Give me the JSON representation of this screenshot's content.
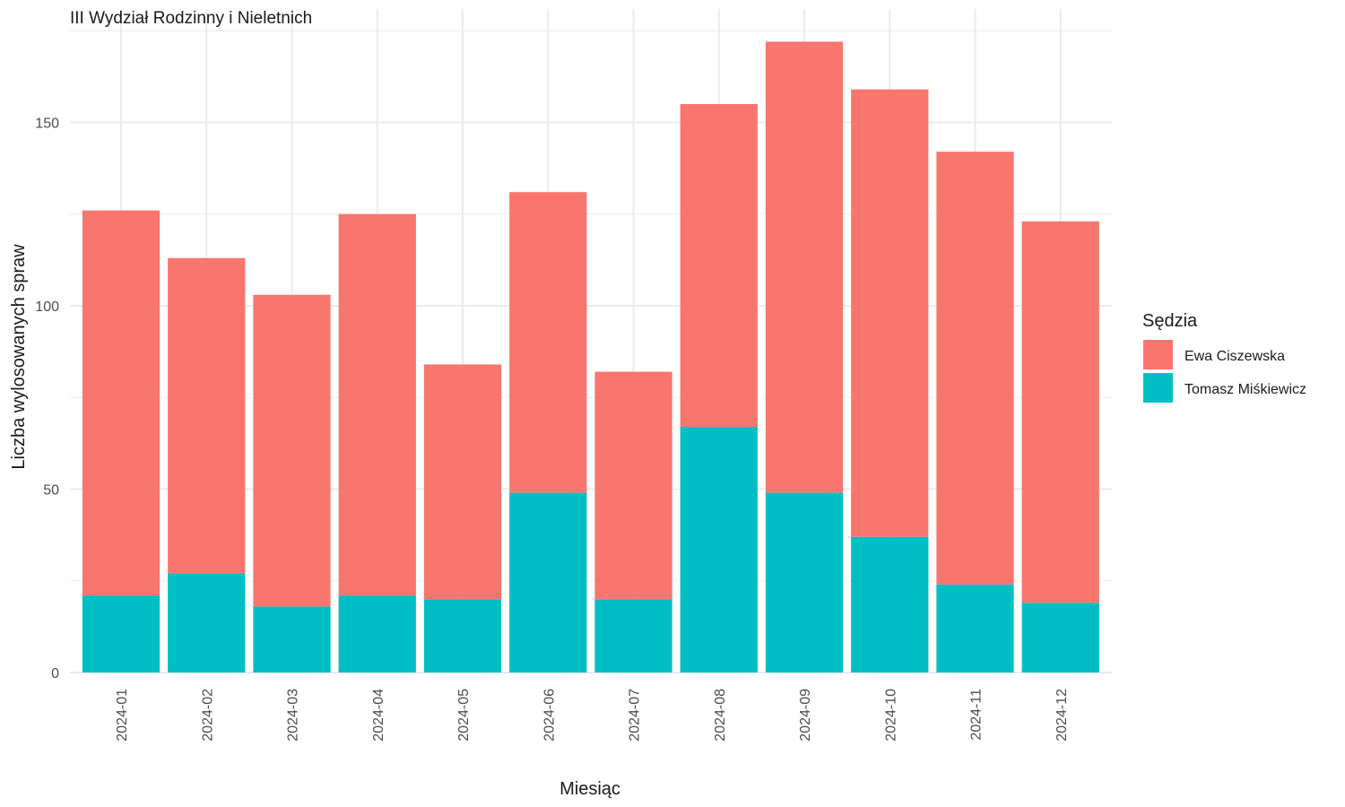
{
  "chart_data": {
    "type": "bar",
    "stacked": true,
    "title": "III Wydział Rodzinny i Nieletnich",
    "xlabel": "Miesiąc",
    "ylabel": "Liczba wylosowanych spraw",
    "categories": [
      "2024-01",
      "2024-02",
      "2024-03",
      "2024-04",
      "2024-05",
      "2024-06",
      "2024-07",
      "2024-08",
      "2024-09",
      "2024-10",
      "2024-11",
      "2024-12"
    ],
    "series": [
      {
        "name": "Ewa Ciszewska",
        "color": "#F8766D",
        "values": [
          105,
          86,
          85,
          104,
          64,
          82,
          62,
          88,
          123,
          122,
          118,
          104
        ]
      },
      {
        "name": "Tomasz Miśkiewicz",
        "color": "#00BFC4",
        "values": [
          21,
          27,
          18,
          21,
          20,
          49,
          20,
          67,
          49,
          37,
          24,
          19
        ]
      }
    ],
    "ylim": [
      0,
      180
    ],
    "yticks": [
      0,
      50,
      100,
      150
    ],
    "grid": true,
    "legend": {
      "title": "Sędzia",
      "position": "right"
    }
  }
}
